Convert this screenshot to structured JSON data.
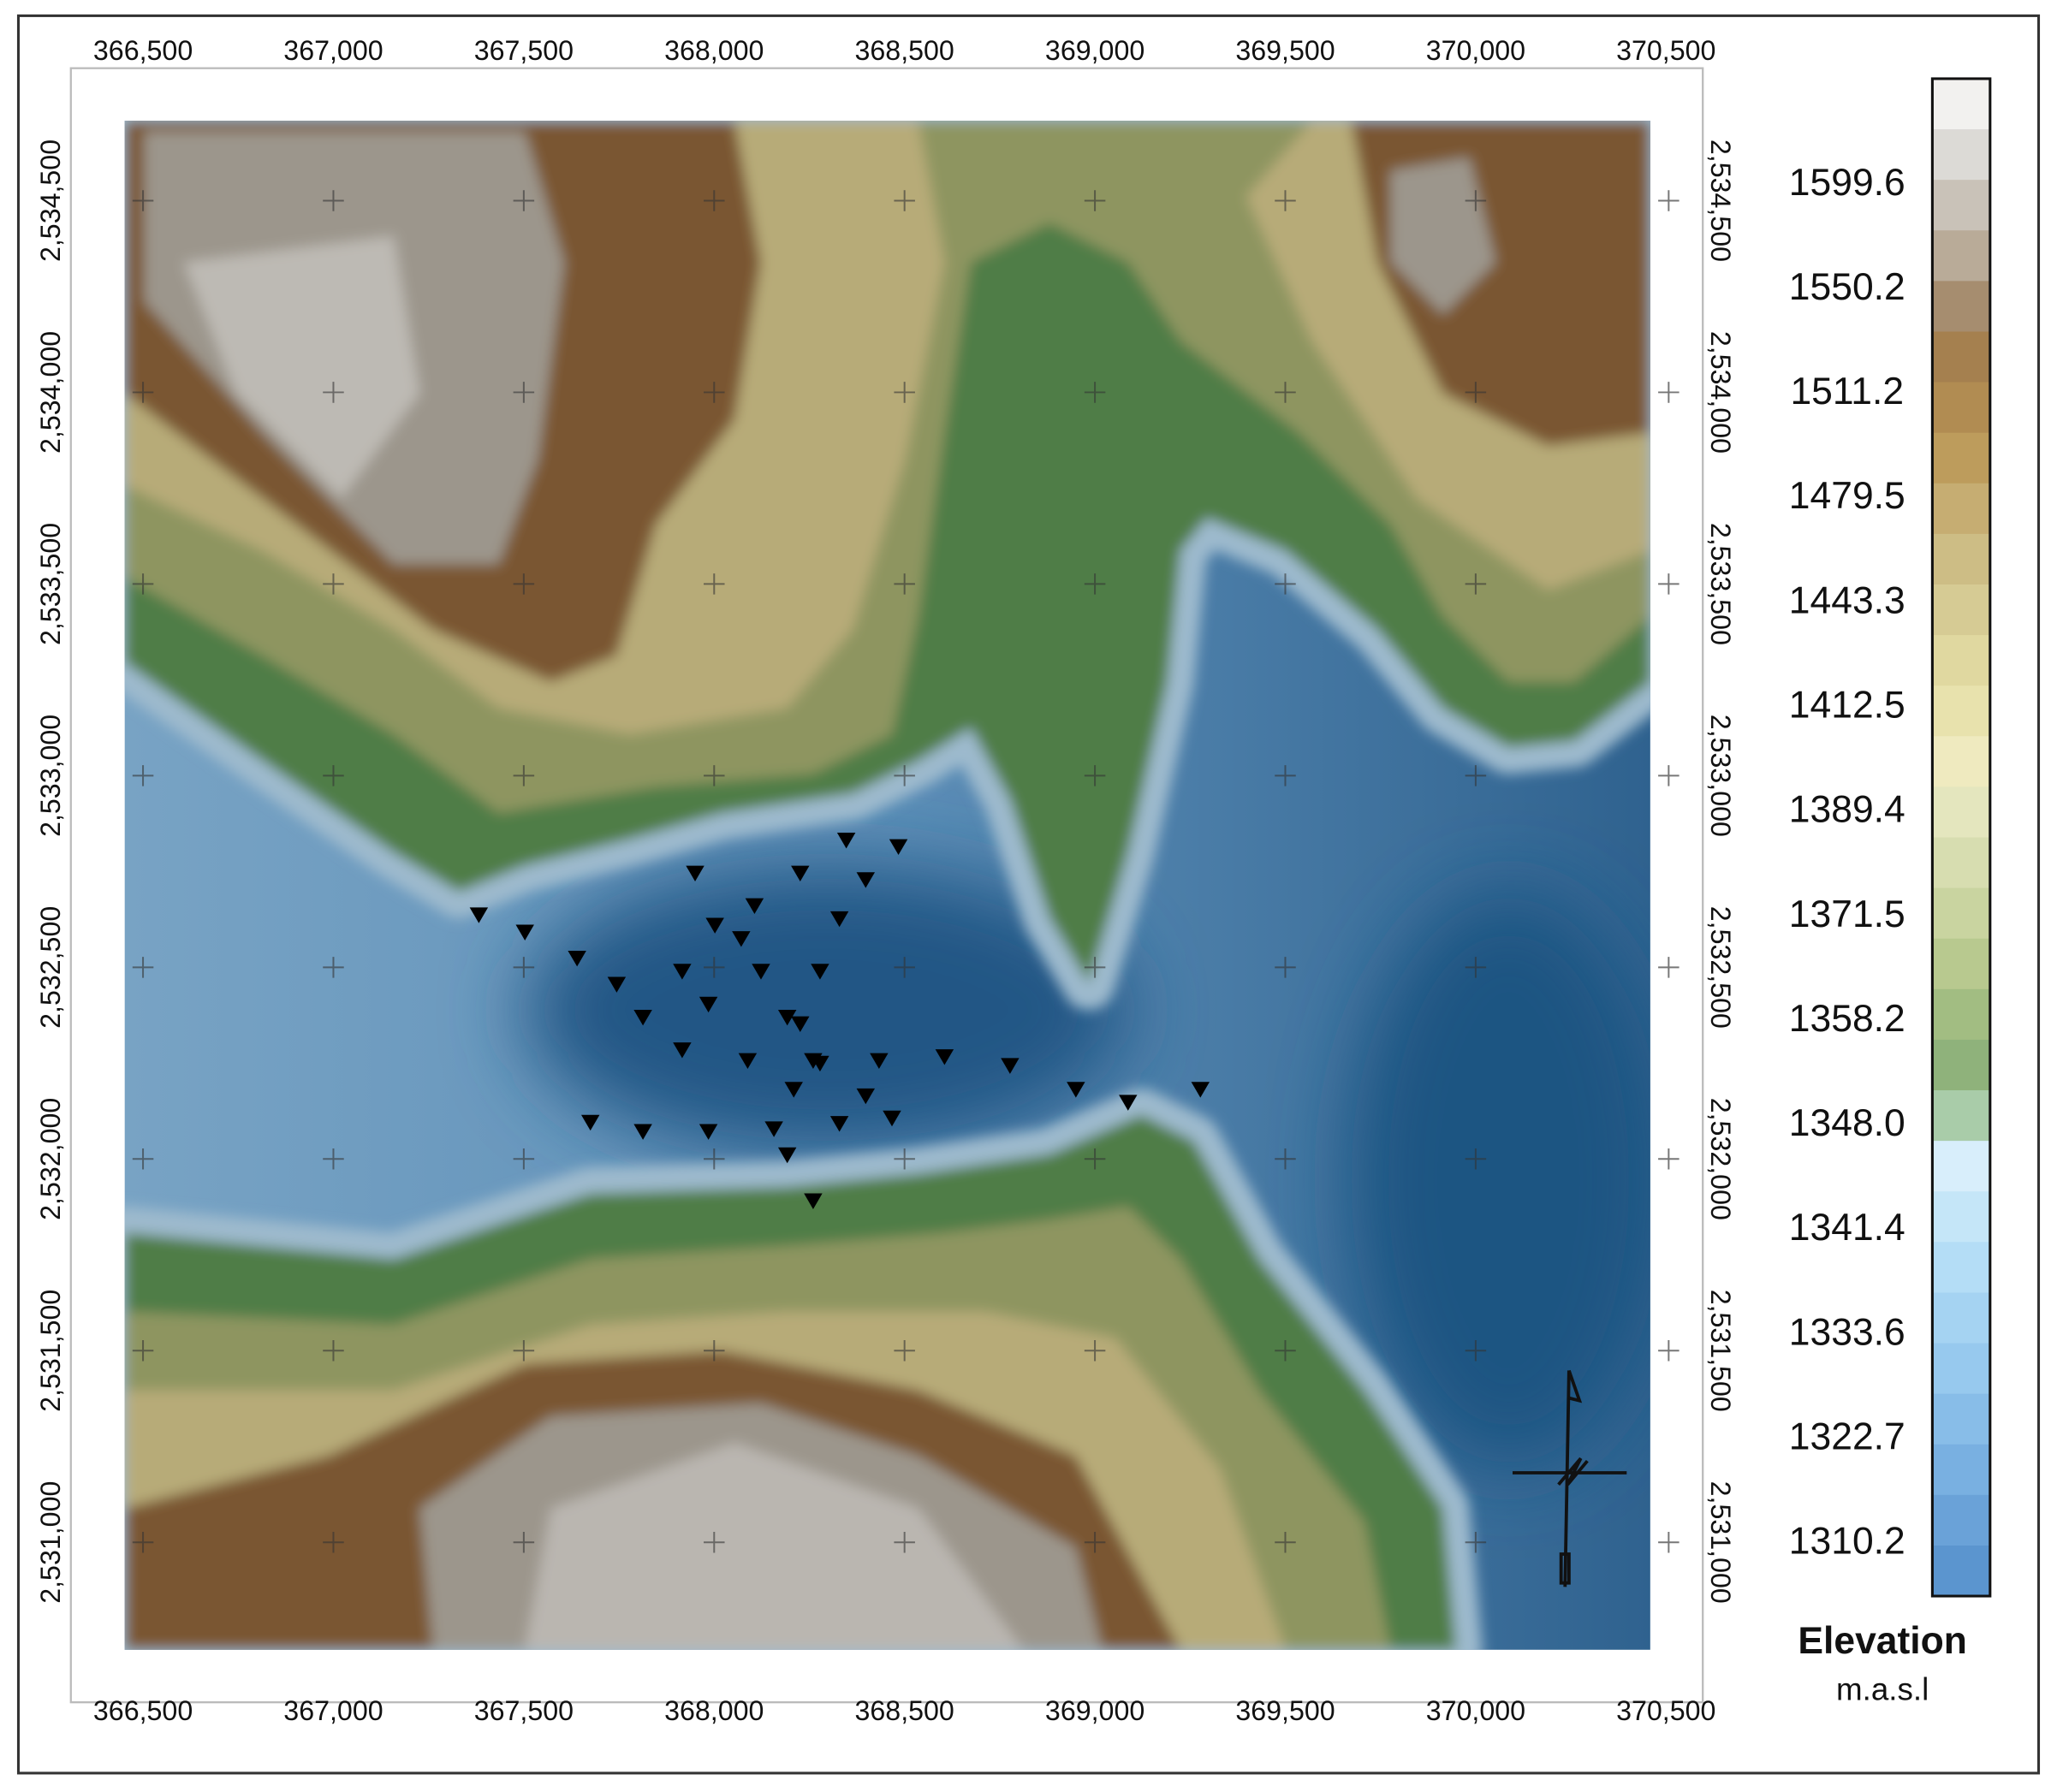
{
  "map": {
    "x_ticks": [
      {
        "value": 366500,
        "label": "366,500"
      },
      {
        "value": 367000,
        "label": "367,000"
      },
      {
        "value": 367500,
        "label": "367,500"
      },
      {
        "value": 368000,
        "label": "368,000"
      },
      {
        "value": 368500,
        "label": "368,500"
      },
      {
        "value": 369000,
        "label": "369,000"
      },
      {
        "value": 369500,
        "label": "369,500"
      },
      {
        "value": 370000,
        "label": "370,000"
      },
      {
        "value": 370500,
        "label": "370,500"
      }
    ],
    "y_ticks": [
      {
        "value": 2534500,
        "label": "2,534,500"
      },
      {
        "value": 2534000,
        "label": "2,534,000"
      },
      {
        "value": 2533500,
        "label": "2,533,500"
      },
      {
        "value": 2533000,
        "label": "2,533,000"
      },
      {
        "value": 2532500,
        "label": "2,532,500"
      },
      {
        "value": 2532000,
        "label": "2,532,000"
      },
      {
        "value": 2531500,
        "label": "2,531,500"
      },
      {
        "value": 2531000,
        "label": "2,531,000"
      }
    ]
  },
  "legend": {
    "title": "Elevation",
    "unit": "m.a.s.l",
    "labels": [
      "1599.6",
      "1550.2",
      "1511.2",
      "1479.5",
      "1443.3",
      "1412.5",
      "1389.4",
      "1371.5",
      "1358.2",
      "1348.0",
      "1341.4",
      "1333.6",
      "1322.7",
      "1310.2"
    ],
    "colors": [
      "#f2f1ef",
      "#dcdad6",
      "#c9c2b8",
      "#b9ab98",
      "#a68d6f",
      "#a5804f",
      "#b18c52",
      "#bd9c5c",
      "#c6ad72",
      "#cdbd85",
      "#d6cb94",
      "#e0d8a0",
      "#e8e2ad",
      "#efeabf",
      "#e4e6be",
      "#d7ddb0",
      "#c9d4a0",
      "#b8c98f",
      "#a2bd82",
      "#8fb27b",
      "#a9cca9",
      "#d8eefb",
      "#c5e6f8",
      "#b4ddf6",
      "#a5d3f2",
      "#97c9ee",
      "#88bde8",
      "#79b0e1",
      "#6aa2d8",
      "#5b95cf"
    ]
  },
  "stations": {
    "x": [
      367382,
      367503,
      367640,
      367744,
      367813,
      367916,
      368088,
      368260,
      368433,
      368605,
      368777,
      368950,
      369087,
      369277,
      367675,
      367813,
      367985,
      368157,
      368329,
      368467,
      368484,
      368398,
      368329,
      368278,
      368226,
      368209,
      368192,
      368260,
      368347,
      368226,
      368106,
      368002,
      367950,
      368123,
      368192,
      368278,
      368398,
      367916,
      367985,
      368071
    ],
    "y": [
      2532639,
      2532594,
      2532526,
      2532458,
      2532372,
      2532287,
      2532259,
      2532259,
      2532259,
      2532269,
      2532246,
      2532184,
      2532150,
      2532184,
      2532098,
      2532074,
      2532074,
      2532081,
      2532095,
      2532109,
      2532817,
      2532731,
      2532629,
      2532492,
      2532355,
      2532184,
      2532013,
      2531893,
      2532834,
      2532748,
      2532663,
      2532612,
      2532748,
      2532492,
      2532372,
      2532252,
      2532167,
      2532492,
      2532406,
      2532577
    ]
  }
}
